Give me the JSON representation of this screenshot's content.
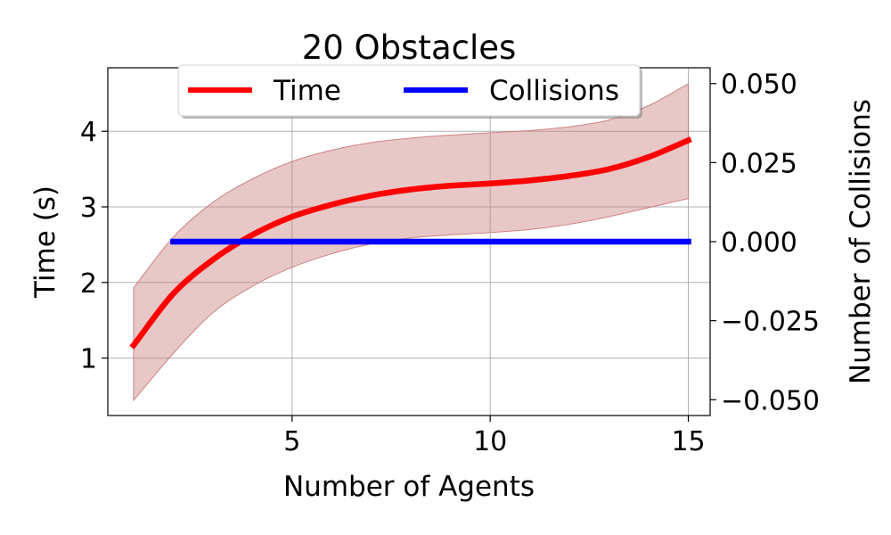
{
  "chart_data": {
    "type": "line",
    "title": "20 Obstacles",
    "xlabel": "Number of Agents",
    "ylabel_left": "Time (s)",
    "ylabel_right": "Number of Collisions",
    "xlim": [
      0.35,
      15.55
    ],
    "ylim_left": [
      0.24,
      4.84
    ],
    "ylim_right": [
      -0.055,
      0.055
    ],
    "x_ticks": [
      5,
      10,
      15
    ],
    "x_tick_labels": [
      "5",
      "10",
      "15"
    ],
    "y_ticks_left": [
      1,
      2,
      3,
      4
    ],
    "y_tick_labels_left": [
      "1",
      "2",
      "3",
      "4"
    ],
    "y_ticks_right": [
      0.05,
      0.025,
      0.0,
      -0.025,
      -0.05
    ],
    "y_tick_labels_right": [
      "0.050",
      "0.025",
      "0.000",
      "−0.025",
      "−0.050"
    ],
    "grid": true,
    "legend": {
      "placement": "top-center",
      "columns": 2
    },
    "series": [
      {
        "name": "Time",
        "axis": "left",
        "color": "#ff0000",
        "x": [
          1,
          2,
          3,
          4,
          5,
          6,
          7,
          8,
          9,
          10,
          11,
          12,
          13,
          14,
          15
        ],
        "y": [
          1.17,
          1.85,
          2.3,
          2.63,
          2.87,
          3.03,
          3.15,
          3.23,
          3.28,
          3.31,
          3.35,
          3.41,
          3.5,
          3.66,
          3.88
        ],
        "band_lower": [
          0.44,
          1.06,
          1.6,
          1.95,
          2.2,
          2.38,
          2.51,
          2.59,
          2.63,
          2.66,
          2.7,
          2.77,
          2.87,
          2.99,
          3.11
        ],
        "band_upper": [
          1.93,
          2.6,
          3.06,
          3.37,
          3.6,
          3.75,
          3.85,
          3.91,
          3.95,
          3.98,
          4.01,
          4.06,
          4.15,
          4.34,
          4.63
        ],
        "band_color": "#c97a7a"
      },
      {
        "name": "Collisions",
        "axis": "right",
        "color": "#0000ff",
        "x": [
          2,
          15
        ],
        "y": [
          0,
          0
        ]
      }
    ]
  }
}
